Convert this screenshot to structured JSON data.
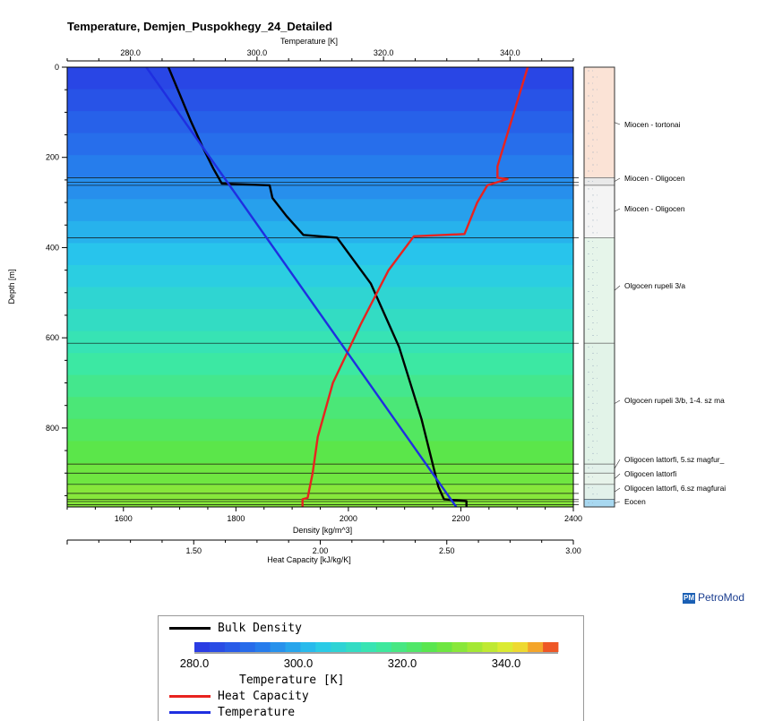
{
  "chart_data": {
    "type": "line",
    "title": "Temperature, Demjen_Puspokhegy_24_Detailed",
    "ylabel": "Depth [m]",
    "ylim": [
      0,
      975
    ],
    "y_reversed": true,
    "y_ticks": [
      "0",
      "200",
      "400",
      "600",
      "800"
    ],
    "axes": {
      "density": {
        "label": "Density [kg/m^3]",
        "lim": [
          1500,
          2400
        ],
        "ticks": [
          "1600",
          "1800",
          "2000",
          "2200",
          "2400"
        ]
      },
      "heat_capacity": {
        "label": "Heat Capacity [kJ/kg/K]",
        "lim": [
          1.0,
          3.0
        ],
        "ticks": [
          "1.50",
          "2.00",
          "2.50",
          "3.00"
        ]
      },
      "temperature": {
        "label": "Temperature [K]",
        "lim": [
          270,
          350
        ],
        "ticks": [
          "280.0",
          "300.0",
          "320.0",
          "340.0"
        ]
      }
    },
    "series": [
      {
        "name": "Bulk Density",
        "axis": "density",
        "color": "#000000",
        "points": [
          [
            1680,
            0
          ],
          [
            1700,
            60
          ],
          [
            1720,
            120
          ],
          [
            1740,
            175
          ],
          [
            1760,
            225
          ],
          [
            1775,
            258
          ],
          [
            1860,
            262
          ],
          [
            1865,
            290
          ],
          [
            1890,
            330
          ],
          [
            1920,
            372
          ],
          [
            1980,
            378
          ],
          [
            2040,
            480
          ],
          [
            2090,
            620
          ],
          [
            2130,
            780
          ],
          [
            2160,
            930
          ],
          [
            2170,
            958
          ],
          [
            2210,
            962
          ],
          [
            2210,
            975
          ]
        ]
      },
      {
        "name": "Heat Capacity",
        "axis": "heat_capacity",
        "color": "#e8231f",
        "points": [
          [
            2.82,
            0
          ],
          [
            2.76,
            110
          ],
          [
            2.7,
            220
          ],
          [
            2.7,
            245
          ],
          [
            2.74,
            248
          ],
          [
            2.66,
            262
          ],
          [
            2.62,
            300
          ],
          [
            2.57,
            370
          ],
          [
            2.37,
            375
          ],
          [
            2.27,
            450
          ],
          [
            2.16,
            570
          ],
          [
            2.05,
            700
          ],
          [
            1.99,
            820
          ],
          [
            1.97,
            900
          ],
          [
            1.95,
            955
          ],
          [
            1.93,
            958
          ],
          [
            1.93,
            975
          ]
        ]
      },
      {
        "name": "Temperature",
        "axis": "temperature",
        "color": "#1f2fe0",
        "points": [
          [
            282.5,
            0
          ],
          [
            331.5,
            975
          ]
        ]
      }
    ],
    "background_temperature_gradient": {
      "top_K": 282,
      "bottom_K": 332
    },
    "layer_boundaries_depth_m": [
      245,
      255,
      262,
      378,
      612,
      880,
      900,
      925,
      945,
      958,
      963,
      970
    ],
    "lithology_panel": [
      {
        "label": "Miocen - tortonai",
        "top": 0,
        "base": 245,
        "color": "#fbe3d6"
      },
      {
        "label": "Miocen - Oligocen",
        "top": 245,
        "base": 262,
        "color": "#e9e9e9"
      },
      {
        "label": "Miocen - Oligocen",
        "top": 262,
        "base": 378,
        "color": "#f4f4f4"
      },
      {
        "label": "Olgocen  rupeli 3/a",
        "top": 378,
        "base": 612,
        "color": "#e6f5ea"
      },
      {
        "label": "Olgocen  rupeli 3/b, 1-4. sz ma",
        "top": 612,
        "base": 880,
        "color": "#e2f3e8"
      },
      {
        "label": "Oligocen lattorfi, 5.sz magfur_",
        "top": 880,
        "base": 900,
        "color": "#e3f1ea"
      },
      {
        "label": "Oligocen lattorfi",
        "top": 900,
        "base": 925,
        "color": "#e7f3ea"
      },
      {
        "label": "Oligocen lattorfi, 6.sz magfurai",
        "top": 925,
        "base": 958,
        "color": "#e2f1ea"
      },
      {
        "label": "Eocen",
        "top": 958,
        "base": 975,
        "color": "#a8d8f0"
      }
    ],
    "legend": {
      "position": "bottom",
      "colorbar_ticks": [
        "280.0",
        "300.0",
        "320.0",
        "340.0"
      ],
      "colorbar_label": "Temperature [K]",
      "colorbar_range": [
        280,
        350
      ]
    }
  },
  "brand": {
    "name": "PetroMod",
    "logo_text": "PM"
  }
}
